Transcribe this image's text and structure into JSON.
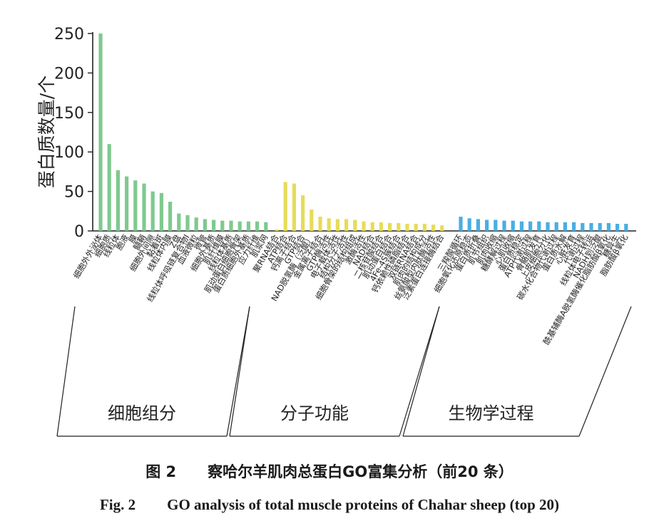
{
  "chart_data": {
    "type": "bar",
    "ylabel": "蛋白质数量/个",
    "ylim": [
      0,
      250
    ],
    "yticks": [
      0,
      50,
      100,
      150,
      200,
      250
    ],
    "grid": false,
    "groups": [
      {
        "name": "细胞组分",
        "color": "#7fc98f",
        "categories": [
          "细胞外外泌体",
          "细胞质",
          "线粒体",
          "胞液",
          "膜",
          "髓鞘",
          "细胞外间隙",
          "黏着斑",
          "线粒体内膜",
          "Z盘",
          "线粒体呼吸链复合物I",
          "血液微粒",
          "微管",
          "细胞外基质",
          "肌纤维膜",
          "线粒体基质",
          "肌动蛋白细胞骨架",
          "蛋白质细胞外基质",
          "应力纤维",
          "肌浆网"
        ],
        "values": [
          250,
          110,
          77,
          69,
          64,
          60,
          50,
          48,
          37,
          22,
          20,
          17,
          15,
          14,
          13,
          13,
          12,
          12,
          12,
          11
        ]
      },
      {
        "name": "分子功能",
        "color": "#e6dc5a",
        "categories": [
          "聚RNA结合",
          "ATP结合",
          "钙离子结合",
          "GTP结合",
          "NAD脱氢酶（泛醌）",
          "金属离子结合",
          "GTP酶活性",
          "电子载体活性",
          "结构分子活性",
          "细胞骨架的结构组成",
          "激酶活性",
          "NAD结合",
          "二核苷酸结合",
          "肌动蛋白结合",
          "4Fe-4S簇结合",
          "钙依赖性磷脂结合",
          "双链RNA结合",
          "肌肉的结构成分",
          "丝氨酸型内肽酶活性",
          "泛素蛋白连接酶结合"
        ],
        "values": [
          2,
          62,
          60,
          45,
          27,
          18,
          16,
          15,
          15,
          14,
          12,
          11,
          11,
          10,
          10,
          9,
          9,
          9,
          8,
          7
        ]
      },
      {
        "name": "生物学过程",
        "color": "#4aaee3",
        "categories": [
          "三羧酸循环",
          "细胞氧化还原稳态",
          "蛋白质折叠",
          "肌节组织",
          "肌肉收缩",
          "糖酵解过程",
          "心肌收缩",
          "蛋白质稳定",
          "ATP代谢过程",
          "骨骼肌发育",
          "上皮细胞分化",
          "碳水化合物代谢过程",
          "蛋白质水解",
          "心脏发育",
          "代谢过程",
          "线粒体电子转运",
          "NADH到泛醌",
          "酰基辅酶A脱氢酶催化脂肪酸β氧化",
          "糖异生",
          "脂肪酸β氧化"
        ],
        "values": [
          18,
          16,
          15,
          14,
          14,
          13,
          13,
          12,
          12,
          12,
          11,
          11,
          11,
          11,
          10,
          10,
          10,
          10,
          9,
          9
        ]
      }
    ]
  },
  "caption": {
    "cn_num": "图 2",
    "cn_text": "察哈尔羊肌肉总蛋白GO富集分析（前20 条）",
    "en_num": "Fig. 2",
    "en_text": "GO analysis of total muscle proteins of Chahar sheep (top 20)"
  }
}
